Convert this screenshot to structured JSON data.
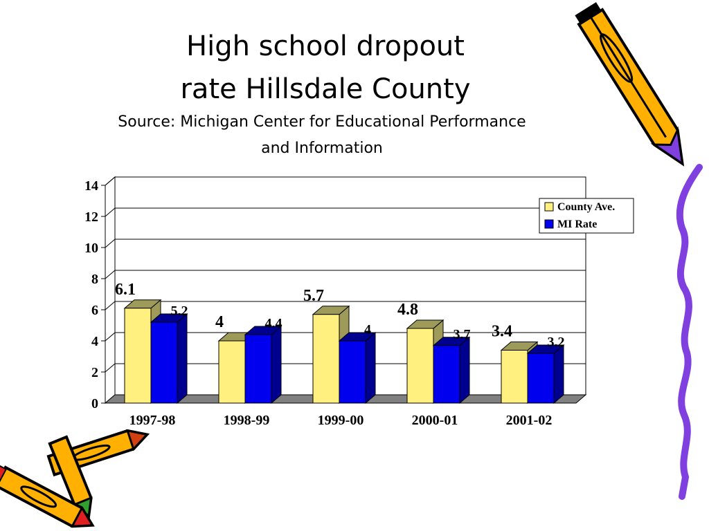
{
  "title": {
    "line1": "High school dropout",
    "line2": "rate Hillsdale County"
  },
  "subtitle": {
    "line1": "Source: Michigan Center for Educational Performance",
    "line2": "and Information"
  },
  "colors": {
    "county": "#FFF080",
    "county_top": "#9E9A5A",
    "mi": "#0000EE",
    "mi_side": "#000090",
    "floor": "#808080",
    "wall": "#ffffff",
    "pencil_body": "#FFB000",
    "crayon_purple": "#8040E0"
  },
  "icons": [
    "pencil-icon",
    "crayon-squiggle-icon"
  ],
  "chart_data": {
    "type": "bar",
    "categories": [
      "1997-98",
      "1998-99",
      "1999-00",
      "2000-01",
      "2001-02"
    ],
    "series": [
      {
        "name": "County Ave.",
        "values": [
          6.1,
          4,
          5.7,
          4.8,
          3.4
        ]
      },
      {
        "name": "MI Rate",
        "values": [
          5.2,
          4.4,
          4,
          3.7,
          3.2
        ]
      }
    ],
    "y_ticks": [
      "0",
      "2",
      "4",
      "6",
      "8",
      "10",
      "12",
      "14"
    ],
    "ylim": [
      0,
      14
    ],
    "grid": true,
    "legend": "top-right",
    "three_d": true
  }
}
